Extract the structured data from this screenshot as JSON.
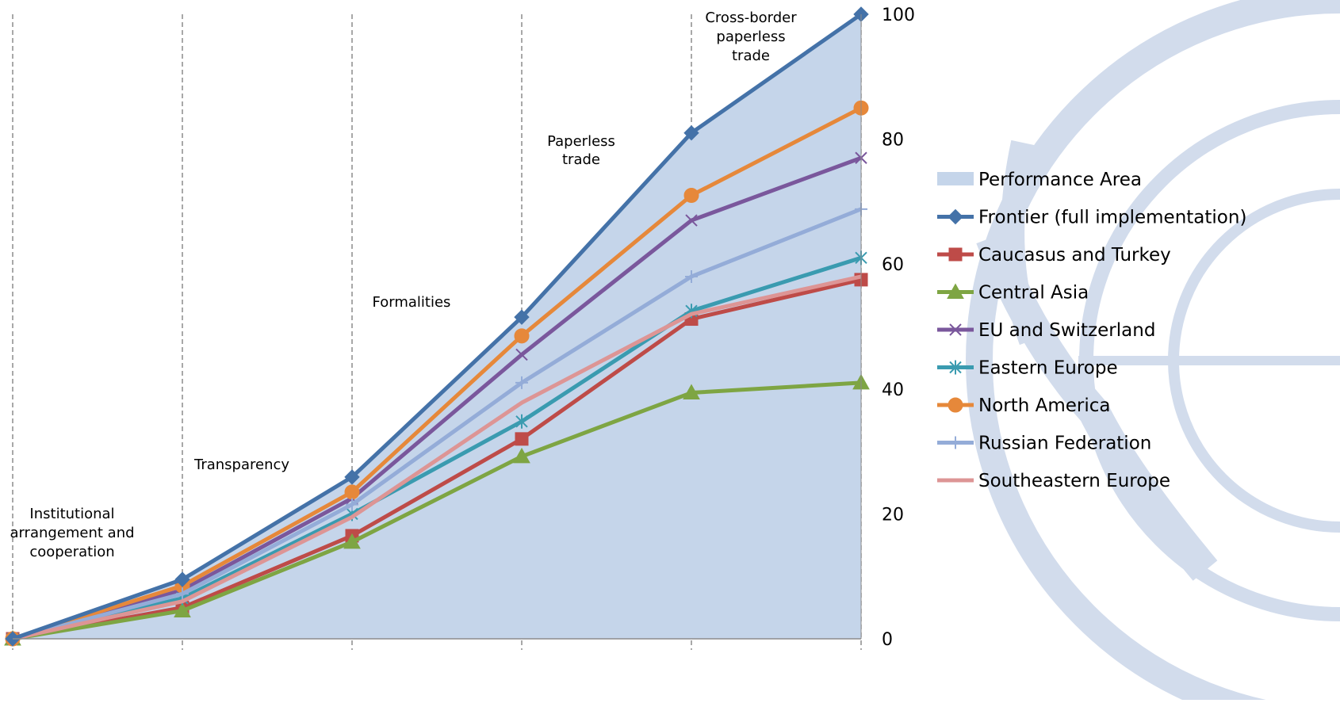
{
  "chart_data": {
    "type": "line",
    "title": "",
    "xlabel": "",
    "ylabel": "",
    "ylim": [
      0,
      100
    ],
    "y_ticks": [
      "0",
      "20",
      "40",
      "60",
      "80",
      "100"
    ],
    "y_axis_position": "right",
    "legend_position": "right",
    "x": [
      0,
      1,
      2,
      3,
      4,
      5
    ],
    "category_labels": [
      [
        "Institutional",
        "arrangement and",
        "cooperation"
      ],
      [
        "Transparency"
      ],
      [
        "Formalities"
      ],
      [
        "Paperless",
        "trade"
      ],
      [
        "Cross-border",
        "paperless",
        "trade"
      ]
    ],
    "area": {
      "name": "Performance Area",
      "color": "#c5d5ea",
      "values": [
        0,
        9.5,
        25.9,
        51.5,
        81.0,
        100
      ]
    },
    "series": [
      {
        "name": "Frontier (full implementation)",
        "color": "#4472a8",
        "marker": "diamond",
        "values": [
          0,
          9.5,
          25.9,
          51.5,
          81.0,
          100
        ]
      },
      {
        "name": "Caucasus and Turkey",
        "color": "#be4b48",
        "marker": "square",
        "values": [
          0,
          5.0,
          16.5,
          32.0,
          51.2,
          57.5
        ]
      },
      {
        "name": "Central Asia",
        "color": "#7ea543",
        "marker": "triangle",
        "values": [
          0,
          4.5,
          15.5,
          29.2,
          39.4,
          41.0
        ]
      },
      {
        "name": "EU and Switzerland",
        "color": "#7a579c",
        "marker": "x",
        "values": [
          0,
          7.8,
          22.5,
          45.5,
          67.0,
          77.0
        ]
      },
      {
        "name": "Eastern Europe",
        "color": "#3a9bb0",
        "marker": "star",
        "values": [
          0,
          6.5,
          20.0,
          34.8,
          52.5,
          61.0
        ]
      },
      {
        "name": "North America",
        "color": "#e6883a",
        "marker": "circle",
        "values": [
          0,
          8.5,
          23.5,
          48.5,
          71.0,
          85.0
        ]
      },
      {
        "name": "Russian Federation",
        "color": "#94acd8",
        "marker": "plus",
        "values": [
          0,
          7.2,
          21.5,
          41.0,
          58.0,
          68.8
        ]
      },
      {
        "name": "Southeastern Europe",
        "color": "#dd9595",
        "marker": "none",
        "values": [
          0,
          6.0,
          19.5,
          37.8,
          52.0,
          58.0
        ]
      }
    ]
  }
}
